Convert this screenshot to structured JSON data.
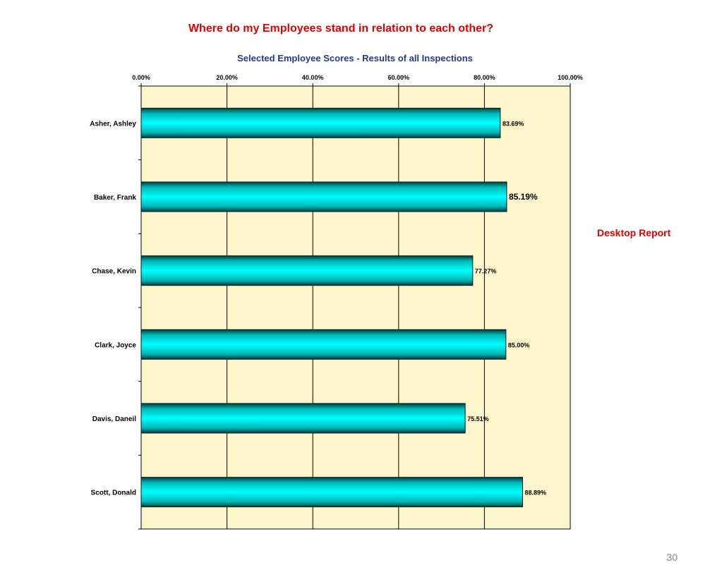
{
  "slide": {
    "heading": "Where do my Employees stand in relation to each other?",
    "side_note": "Desktop Report",
    "page_number": "30"
  },
  "colors": {
    "plot_background": "#fdf6cc",
    "bar_fill": "#00eeee",
    "bar_edge": "#003c3c",
    "heading_red": "#e00000",
    "title_blue": "#1f3a93"
  },
  "chart_data": {
    "type": "bar",
    "orientation": "horizontal",
    "title": "Selected Employee Scores - Results of all Inspections",
    "categories": [
      "Asher, Ashley",
      "Baker, Frank",
      "Chase, Kevin",
      "Clark, Joyce",
      "Davis, Daneil",
      "Scott, Donald"
    ],
    "values": [
      83.69,
      85.19,
      77.27,
      85.0,
      75.51,
      88.89
    ],
    "data_labels": [
      "83.69%",
      "85.19%",
      "77.27%",
      "85.00%",
      "75.51%",
      "88.89%"
    ],
    "emphasized_label_index": 1,
    "xlim": [
      0,
      100
    ],
    "x_ticks": [
      0,
      20,
      40,
      60,
      80,
      100
    ],
    "x_tick_labels": [
      "0.00%",
      "20.00%",
      "40.00%",
      "60.00%",
      "80.00%",
      "100.00%"
    ],
    "x_axis_position": "top",
    "xlabel": "",
    "ylabel": "",
    "grid": "vertical",
    "legend": "none"
  }
}
